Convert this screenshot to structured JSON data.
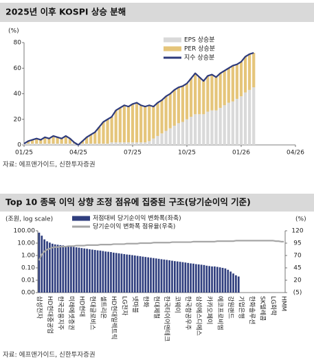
{
  "chart_data": [
    {
      "type": "bar",
      "stacked": true,
      "title": "2025년 이후 KOSPI 상승 분해",
      "ylabel": "(%)",
      "source": "자료: 에프앤가이드, 신한투자증권",
      "categories": [
        "01/25",
        null,
        null,
        null,
        null,
        null,
        null,
        null,
        null,
        null,
        null,
        null,
        null,
        "04/25",
        null,
        null,
        null,
        null,
        null,
        null,
        null,
        null,
        null,
        null,
        null,
        null,
        "07/25",
        null,
        null,
        null,
        null,
        null,
        null,
        null,
        null,
        null,
        null,
        null,
        null,
        "10/25",
        null,
        null,
        null,
        null,
        null,
        null,
        null,
        null,
        null,
        null,
        null,
        null,
        "01/26",
        null,
        null,
        null,
        null,
        null,
        null,
        null,
        null,
        null,
        null,
        null,
        null,
        "04/26"
      ],
      "ylim": [
        0,
        80
      ],
      "yticks": [
        0,
        20,
        40,
        60,
        80
      ],
      "legend": "upper center",
      "series": [
        {
          "name": "EPS 상승분",
          "color": "#d9d9d9",
          "values": [
            1,
            1,
            1,
            1,
            1,
            1,
            1,
            1,
            1,
            1,
            1,
            1,
            1,
            0,
            1,
            1,
            1,
            1,
            1,
            1,
            1,
            2,
            2,
            2,
            2,
            2,
            2,
            2,
            2,
            2,
            3,
            5,
            7,
            9,
            11,
            13,
            15,
            17,
            18,
            20,
            22,
            24,
            24,
            24,
            26,
            27,
            27,
            29,
            31,
            33,
            34,
            36,
            38,
            41,
            43,
            45,
            null,
            null,
            null,
            null,
            null,
            null,
            null,
            null,
            null,
            null
          ]
        },
        {
          "name": "PER 상승분",
          "color": "#e5c57a",
          "values": [
            0,
            2,
            3,
            4,
            3,
            5,
            4,
            6,
            5,
            4,
            6,
            4,
            1,
            0,
            2,
            5,
            7,
            9,
            13,
            17,
            19,
            20,
            25,
            27,
            29,
            28,
            30,
            31,
            29,
            28,
            28,
            25,
            26,
            26,
            27,
            27,
            28,
            28,
            28,
            28,
            30,
            32,
            29,
            26,
            28,
            28,
            26,
            27,
            27,
            27,
            28,
            27,
            27,
            28,
            28,
            27,
            null,
            null,
            null,
            null,
            null,
            null,
            null,
            null,
            null,
            null
          ]
        },
        {
          "name": "지수 상승분",
          "type": "line",
          "color": "#2e3b7c",
          "values": [
            1,
            3,
            4,
            5,
            4,
            6,
            5,
            7,
            6,
            5,
            7,
            5,
            2,
            0,
            3,
            6,
            8,
            10,
            14,
            18,
            20,
            22,
            27,
            29,
            31,
            30,
            32,
            33,
            31,
            30,
            31,
            30,
            33,
            35,
            38,
            40,
            43,
            45,
            46,
            48,
            52,
            56,
            53,
            50,
            54,
            55,
            53,
            56,
            58,
            60,
            62,
            63,
            65,
            69,
            71,
            72,
            null,
            null,
            null,
            null,
            null,
            null,
            null,
            null,
            null,
            null
          ]
        }
      ]
    },
    {
      "type": "bar",
      "title": "Top 10 종목 이익 상향 조정 점유에 집중된 구조(당기순이익 기준)",
      "ylabel": "(조원, log scale)",
      "y2label": "(%)",
      "source": "자료: 에프앤가이드, 신한투자증권",
      "yscale": "log",
      "ylim": [
        0.001,
        100
      ],
      "yticks": [
        {
          "value": 100,
          "label": "100.00"
        },
        {
          "value": 10,
          "label": "10.00"
        },
        {
          "value": 1,
          "label": "1.00"
        },
        {
          "value": 0.1,
          "label": "0.10"
        },
        {
          "value": 0.01,
          "label": "0.01"
        },
        {
          "value": 0.001,
          "label": "0.00"
        }
      ],
      "y2lim": [
        -5,
        120
      ],
      "y2ticks": [
        120,
        95,
        70,
        45,
        20,
        {
          "value": -5,
          "label": "(5)"
        }
      ],
      "legend": "upper left",
      "categories": [
        "삼성전자",
        null,
        null,
        null,
        "HD현대중공업",
        null,
        null,
        null,
        "한국금융지주",
        null,
        null,
        null,
        "미래에셋증권",
        null,
        null,
        null,
        "HD현대",
        null,
        null,
        null,
        "현대글로비스",
        null,
        null,
        null,
        "셀트리온",
        null,
        null,
        null,
        "HD현대일렉트릭",
        null,
        null,
        null,
        "LG전자",
        null,
        null,
        null,
        "넷마블",
        null,
        null,
        null,
        "한화",
        null,
        null,
        null,
        "현대제철",
        null,
        null,
        null,
        "한국타이어앤테크",
        null,
        null,
        null,
        "코웨이",
        null,
        null,
        null,
        "한국항공우주",
        null,
        null,
        null,
        "삼성에스디에스",
        null,
        null,
        null,
        "카카오페이",
        null,
        null,
        null,
        "에코프로비엠",
        null,
        null,
        null,
        "강원랜드",
        null,
        null,
        null,
        "기업은행",
        null,
        null,
        null,
        "한화솔루션",
        null,
        null,
        null,
        "SK텔레콤",
        null,
        null,
        null,
        "LG화학",
        null,
        null,
        null,
        "HMM"
      ],
      "series": [
        {
          "name": "저점대비 당기순이익 변화폭(좌축)",
          "color": "#2f3e7e",
          "values": [
            70,
            40,
            20,
            14,
            11,
            9,
            7.9,
            7.4,
            6.9,
            6.5,
            6.0,
            5.6,
            5.2,
            4.9,
            4.6,
            4.3,
            4.0,
            3.7,
            3.5,
            3.2,
            3.0,
            2.8,
            2.6,
            2.5,
            2.3,
            2.1,
            2.0,
            1.9,
            1.7,
            1.6,
            1.5,
            1.4,
            1.3,
            1.2,
            1.15,
            1.07,
            1.0,
            0.93,
            0.87,
            0.81,
            0.76,
            0.71,
            0.66,
            0.62,
            0.58,
            0.54,
            0.5,
            0.47,
            0.44,
            0.41,
            0.38,
            0.35,
            0.33,
            0.31,
            0.29,
            0.27,
            0.25,
            0.23,
            0.22,
            0.2,
            0.19,
            0.18,
            0.17,
            0.15,
            0.14,
            0.13,
            0.13,
            0.12,
            0.11,
            0.1,
            0.09,
            0.07,
            0.05,
            0.035,
            0.025,
            0.02,
            null,
            null,
            null,
            null,
            null,
            null,
            null,
            null,
            null,
            null,
            null,
            null,
            null,
            null,
            null,
            null,
            null
          ]
        },
        {
          "name": "당기순이익 변화폭 점유율(우축)",
          "type": "line",
          "axis": "y2",
          "color": "#a6a6a6",
          "values": [
            60,
            72,
            78,
            82,
            84,
            86,
            87,
            87,
            88,
            88,
            88,
            89,
            89,
            89,
            90,
            90,
            90,
            90,
            91,
            91,
            91,
            91,
            91,
            92,
            92,
            92,
            92,
            92,
            93,
            93,
            93,
            93,
            93,
            94,
            94,
            94,
            94,
            94,
            95,
            95,
            95,
            95,
            95,
            96,
            96,
            96,
            96,
            96,
            96,
            96,
            97,
            97,
            97,
            97,
            97,
            97,
            97,
            97,
            98,
            98,
            98,
            98,
            98,
            98,
            98,
            98,
            98,
            99,
            99,
            99,
            99,
            99,
            99,
            99,
            100,
            100,
            100,
            100,
            100,
            100,
            100,
            100,
            100,
            100,
            100,
            100,
            100,
            100,
            100,
            99,
            99,
            98,
            98
          ]
        }
      ]
    }
  ]
}
